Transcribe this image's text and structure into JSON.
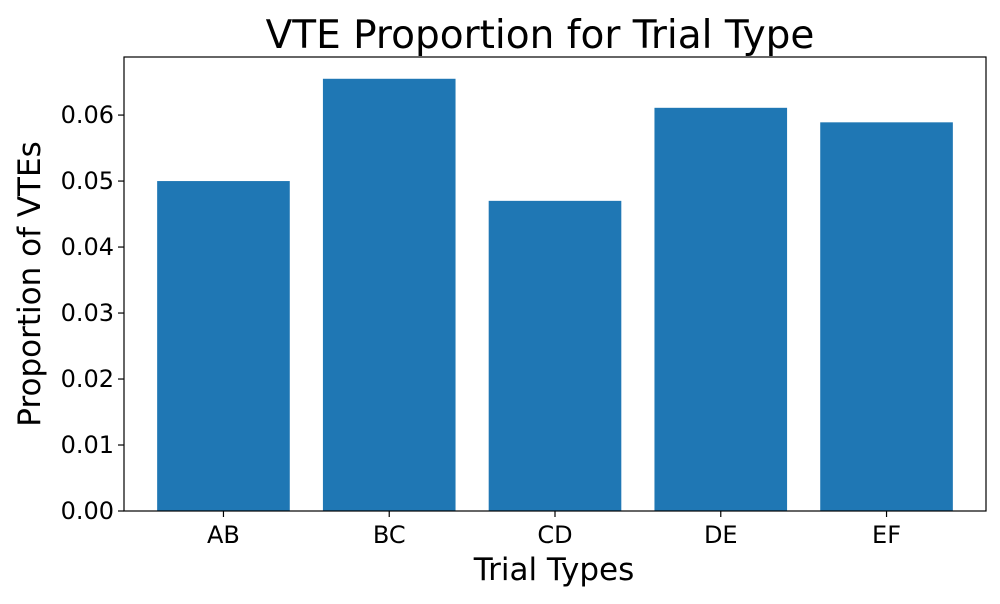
{
  "chart_data": {
    "type": "bar",
    "title": "VTE Proportion for Trial Type",
    "xlabel": "Trial Types",
    "ylabel": "Proportion of VTEs",
    "categories": [
      "AB",
      "BC",
      "CD",
      "DE",
      "EF"
    ],
    "values": [
      0.05,
      0.0655,
      0.047,
      0.0611,
      0.0589
    ],
    "ylim": [
      0,
      0.0688
    ],
    "yticks": [
      "0.00",
      "0.01",
      "0.02",
      "0.03",
      "0.04",
      "0.05",
      "0.06"
    ],
    "grid": false,
    "legend": "none",
    "bar_color": "#1f77b4"
  }
}
